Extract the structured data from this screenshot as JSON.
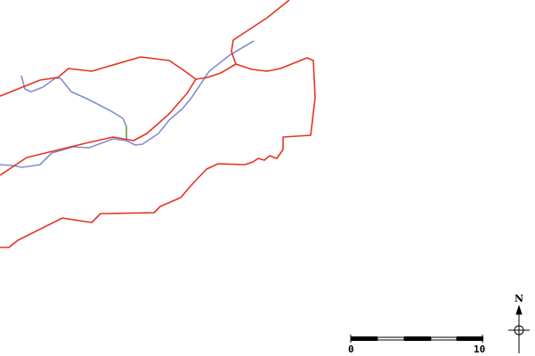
{
  "map": {
    "colors": {
      "road_major": "#e8321e",
      "road_minor": "#7f8fd0",
      "road_green": "#6a9a4a"
    },
    "scale_bar": {
      "start_label": "0",
      "end_label": "10"
    },
    "north_arrow": {
      "label": "N"
    }
  }
}
